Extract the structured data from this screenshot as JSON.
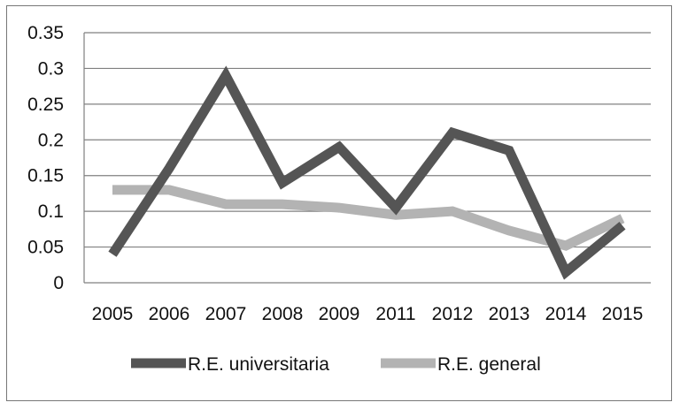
{
  "chart_data": {
    "type": "line",
    "x": [
      "2005",
      "2006",
      "2007",
      "2008",
      "2009",
      "2011",
      "2012",
      "2013",
      "2014",
      "2015"
    ],
    "ylim": [
      0,
      0.35
    ],
    "yticks": [
      "0",
      "0.05",
      "0.1",
      "0.15",
      "0.2",
      "0.25",
      "0.3",
      "0.35"
    ],
    "grid": true,
    "legend_position": "bottom",
    "series": [
      {
        "name": "R.E. universitaria",
        "color": "#555555",
        "values": [
          0.04,
          0.16,
          0.29,
          0.14,
          0.19,
          0.105,
          0.21,
          0.185,
          0.015,
          0.08
        ]
      },
      {
        "name": "R.E. general",
        "color": "#b3b3b3",
        "values": [
          0.13,
          0.13,
          0.11,
          0.11,
          0.105,
          0.095,
          0.1,
          0.073,
          0.052,
          0.09
        ]
      }
    ]
  }
}
